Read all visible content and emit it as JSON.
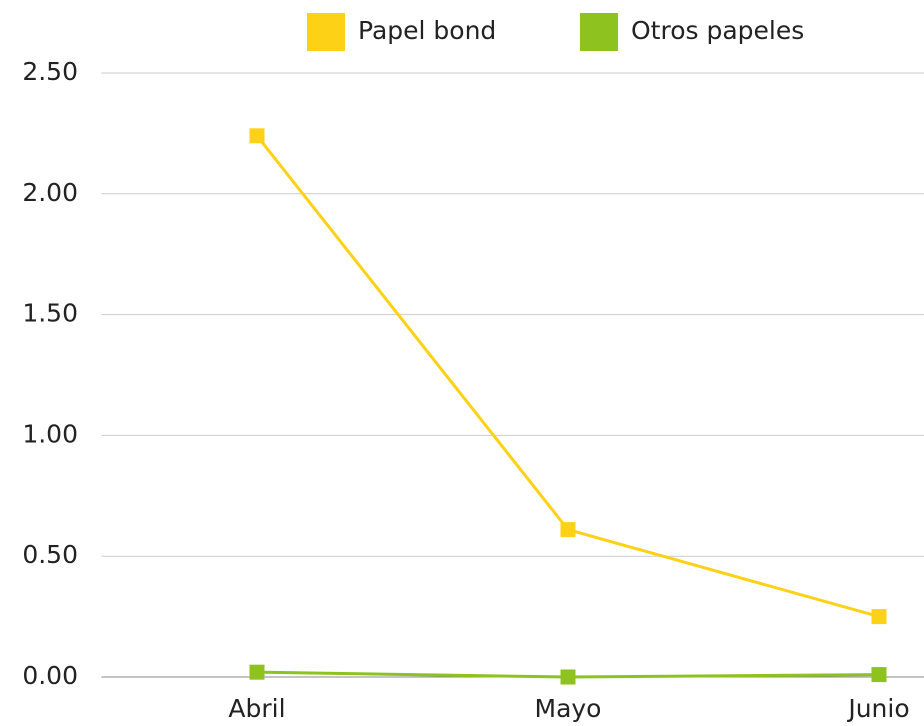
{
  "chart_data": {
    "type": "line",
    "categories": [
      "Abril",
      "Mayo",
      "Junio"
    ],
    "series": [
      {
        "name": "Papel bond",
        "color": "#fcd116",
        "values": [
          2.24,
          0.61,
          0.25
        ]
      },
      {
        "name": "Otros papeles",
        "color": "#8dc21f",
        "values": [
          0.02,
          0,
          0.01
        ]
      }
    ],
    "ylim": [
      0,
      2.5
    ],
    "yticks": [
      {
        "value": 0,
        "label": "0.00"
      },
      {
        "value": 0.5,
        "label": "0.50"
      },
      {
        "value": 1,
        "label": "1.00"
      },
      {
        "value": 1.5,
        "label": "1.50"
      },
      {
        "value": 2,
        "label": "2.00"
      },
      {
        "value": 2.5,
        "label": "2.50"
      }
    ],
    "grid": true,
    "legend": "top"
  }
}
